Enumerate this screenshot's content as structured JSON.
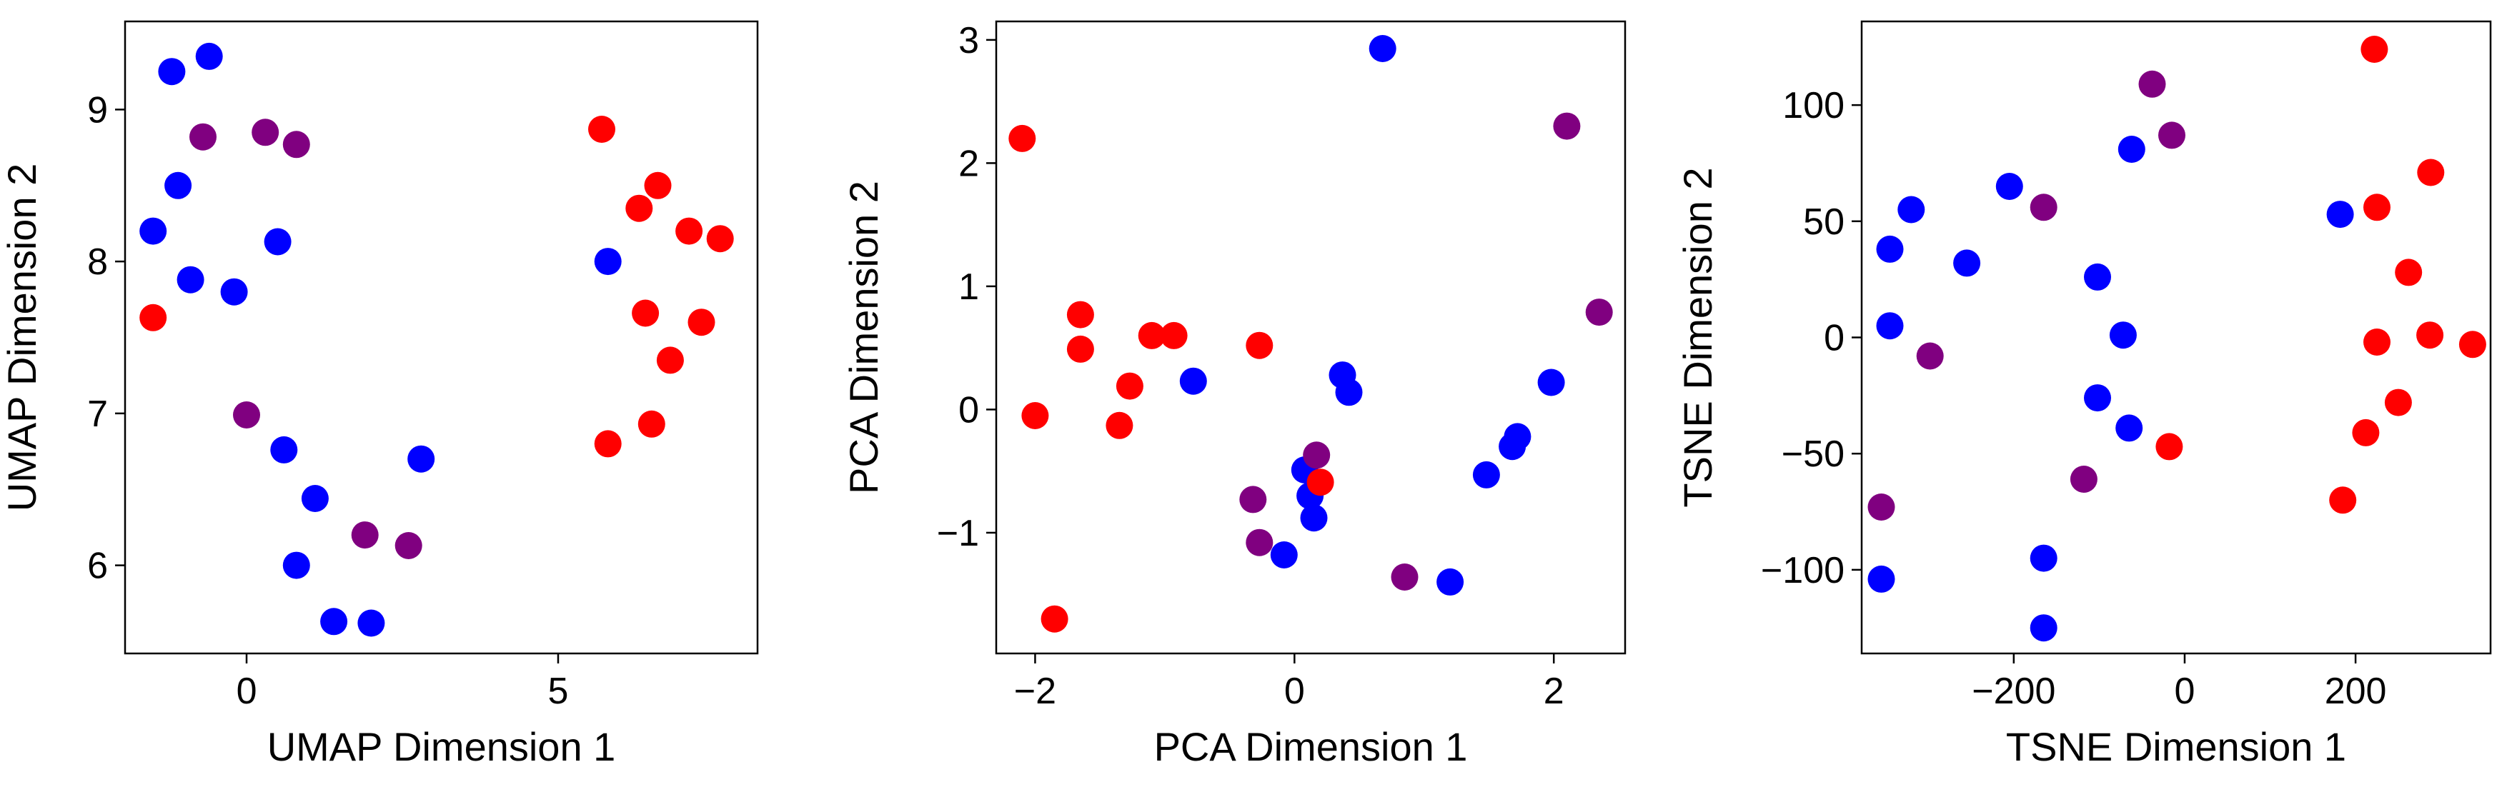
{
  "colors": {
    "blue": "#0000ff",
    "red": "#ff0000",
    "purple": "#800080",
    "axis": "#000000"
  },
  "chart_data": [
    {
      "type": "scatter",
      "title": "",
      "xlabel": "UMAP Dimension 1",
      "ylabel": "UMAP Dimension 2",
      "xlim": [
        -1.95,
        8.2
      ],
      "ylim": [
        5.42,
        9.58
      ],
      "xticks": [
        0,
        5
      ],
      "xtick_labels": [
        "0",
        "5"
      ],
      "yticks": [
        6,
        7,
        8,
        9
      ],
      "ytick_labels": [
        "6",
        "7",
        "8",
        "9"
      ],
      "grid": false,
      "series": [
        {
          "color": "blue",
          "points": [
            [
              -1.2,
              9.25
            ],
            [
              -0.6,
              9.35
            ],
            [
              -1.1,
              8.5
            ],
            [
              -1.5,
              8.2
            ],
            [
              -0.9,
              7.88
            ],
            [
              -0.2,
              7.8
            ],
            [
              0.5,
              8.13
            ],
            [
              5.8,
              8.0
            ],
            [
              0.6,
              6.76
            ],
            [
              2.8,
              6.7
            ],
            [
              1.1,
              6.44
            ],
            [
              0.8,
              6.0
            ],
            [
              1.4,
              5.63
            ],
            [
              2.0,
              5.62
            ]
          ]
        },
        {
          "color": "red",
          "points": [
            [
              -1.5,
              7.63
            ],
            [
              5.7,
              8.87
            ],
            [
              6.6,
              8.5
            ],
            [
              6.3,
              8.35
            ],
            [
              7.1,
              8.2
            ],
            [
              7.6,
              8.15
            ],
            [
              6.4,
              7.66
            ],
            [
              7.3,
              7.6
            ],
            [
              6.8,
              7.35
            ],
            [
              6.5,
              6.93
            ],
            [
              5.8,
              6.8
            ]
          ]
        },
        {
          "color": "purple",
          "points": [
            [
              -0.7,
              8.82
            ],
            [
              0.3,
              8.85
            ],
            [
              0.8,
              8.77
            ],
            [
              0.0,
              6.99
            ],
            [
              1.9,
              6.2
            ],
            [
              2.6,
              6.13
            ]
          ]
        }
      ]
    },
    {
      "type": "scatter",
      "title": "",
      "xlabel": "PCA Dimension 1",
      "ylabel": "PCA Dimension 2",
      "xlim": [
        -2.3,
        2.55
      ],
      "ylim": [
        -1.98,
        3.15
      ],
      "xticks": [
        -2,
        0,
        2
      ],
      "xtick_labels": [
        "−2",
        "0",
        "2"
      ],
      "yticks": [
        -1,
        0,
        1,
        2,
        3
      ],
      "ytick_labels": [
        "−1",
        "0",
        "1",
        "2",
        "3"
      ],
      "grid": false,
      "series": [
        {
          "color": "blue",
          "points": [
            [
              0.68,
              2.93
            ],
            [
              -0.78,
              0.23
            ],
            [
              0.37,
              0.28
            ],
            [
              0.42,
              0.14
            ],
            [
              1.98,
              0.22
            ],
            [
              0.08,
              -0.49
            ],
            [
              0.12,
              -0.7
            ],
            [
              0.15,
              -0.88
            ],
            [
              -0.08,
              -1.18
            ],
            [
              1.48,
              -0.53
            ],
            [
              1.72,
              -0.22
            ],
            [
              1.68,
              -0.3
            ],
            [
              1.2,
              -1.4
            ]
          ]
        },
        {
          "color": "red",
          "points": [
            [
              -2.1,
              2.2
            ],
            [
              -2.0,
              -0.05
            ],
            [
              -1.65,
              0.77
            ],
            [
              -1.65,
              0.49
            ],
            [
              -1.1,
              0.6
            ],
            [
              -0.93,
              0.6
            ],
            [
              -0.27,
              0.52
            ],
            [
              -1.27,
              0.19
            ],
            [
              -1.35,
              -0.13
            ],
            [
              0.2,
              -0.59
            ],
            [
              -1.85,
              -1.7
            ]
          ]
        },
        {
          "color": "purple",
          "points": [
            [
              2.1,
              2.3
            ],
            [
              2.35,
              0.79
            ],
            [
              0.17,
              -0.37
            ],
            [
              -0.32,
              -0.73
            ],
            [
              -0.27,
              -1.08
            ],
            [
              0.85,
              -1.36
            ]
          ]
        }
      ]
    },
    {
      "type": "scatter",
      "title": "",
      "xlabel": "TSNE Dimension 1",
      "ylabel": "TSNE Dimension 2",
      "xlim": [
        -378,
        358
      ],
      "ylim": [
        -136,
        136
      ],
      "xticks": [
        -200,
        0,
        200
      ],
      "xtick_labels": [
        "−200",
        "0",
        "200"
      ],
      "yticks": [
        -100,
        -50,
        0,
        50,
        100
      ],
      "ytick_labels": [
        "−100",
        "−50",
        "0",
        "50",
        "100"
      ],
      "grid": false,
      "series": [
        {
          "color": "blue",
          "points": [
            [
              -320,
              55
            ],
            [
              -345,
              38
            ],
            [
              -205,
              65
            ],
            [
              -62,
              81
            ],
            [
              -255,
              32
            ],
            [
              182,
              53
            ],
            [
              -345,
              5
            ],
            [
              -102,
              26
            ],
            [
              -72,
              1
            ],
            [
              -102,
              -26
            ],
            [
              -65,
              -39
            ],
            [
              -165,
              -95
            ],
            [
              -355,
              -104
            ],
            [
              -165,
              -125
            ]
          ]
        },
        {
          "color": "red",
          "points": [
            [
              222,
              124
            ],
            [
              288,
              71
            ],
            [
              225,
              56
            ],
            [
              262,
              28
            ],
            [
              225,
              -2
            ],
            [
              287,
              1
            ],
            [
              337,
              -3
            ],
            [
              -18,
              -47
            ],
            [
              250,
              -28
            ],
            [
              212,
              -41
            ],
            [
              185,
              -70
            ]
          ]
        },
        {
          "color": "purple",
          "points": [
            [
              -38,
              109
            ],
            [
              -15,
              87
            ],
            [
              -165,
              56
            ],
            [
              -298,
              -8
            ],
            [
              -118,
              -61
            ],
            [
              -355,
              -73
            ]
          ]
        }
      ]
    }
  ]
}
